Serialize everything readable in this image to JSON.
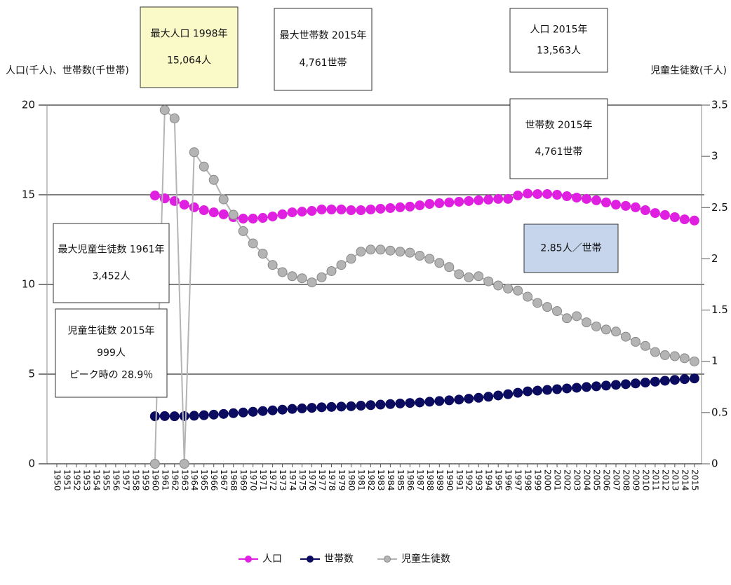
{
  "chart_data": {
    "type": "line",
    "y_label": "人口(千人)、世帯数(千世帯)",
    "y2_label": "児童生徒数(千人)",
    "categories": [
      "1950",
      "1951",
      "1952",
      "1953",
      "1954",
      "1955",
      "1956",
      "1957",
      "1958",
      "1959",
      "1960",
      "1961",
      "1962",
      "1963",
      "1964",
      "1965",
      "1966",
      "1967",
      "1968",
      "1969",
      "1970",
      "1971",
      "1972",
      "1973",
      "1974",
      "1975",
      "1976",
      "1977",
      "1978",
      "1979",
      "1980",
      "1981",
      "1982",
      "1983",
      "1984",
      "1985",
      "1986",
      "1987",
      "1988",
      "1989",
      "1990",
      "1991",
      "1992",
      "1993",
      "1994",
      "1995",
      "1996",
      "1997",
      "1998",
      "1999",
      "2000",
      "2001",
      "2002",
      "2003",
      "2004",
      "2005",
      "2006",
      "2007",
      "2008",
      "2009",
      "2010",
      "2011",
      "2012",
      "2013",
      "2014",
      "2015"
    ],
    "series": [
      {
        "name": "人口",
        "color": "#e020e0",
        "values": [
          null,
          null,
          null,
          null,
          null,
          null,
          null,
          null,
          null,
          null,
          14.96,
          14.8,
          14.65,
          14.45,
          14.3,
          14.14,
          14.02,
          13.91,
          13.75,
          13.67,
          13.67,
          13.71,
          13.79,
          13.91,
          14.02,
          14.06,
          14.1,
          14.18,
          14.18,
          14.18,
          14.14,
          14.14,
          14.18,
          14.22,
          14.26,
          14.3,
          14.34,
          14.41,
          14.49,
          14.53,
          14.57,
          14.61,
          14.65,
          14.69,
          14.73,
          14.77,
          14.77,
          14.96,
          15.064,
          15.04,
          15.04,
          15.0,
          14.92,
          14.84,
          14.77,
          14.69,
          14.57,
          14.45,
          14.38,
          14.3,
          14.14,
          13.98,
          13.87,
          13.75,
          13.63,
          13.563
        ]
      },
      {
        "name": "世帯数",
        "color": "#0b0b60",
        "values": [
          null,
          null,
          null,
          null,
          null,
          null,
          null,
          null,
          null,
          null,
          2.65,
          2.66,
          2.65,
          2.66,
          2.68,
          2.71,
          2.74,
          2.78,
          2.82,
          2.86,
          2.9,
          2.94,
          2.98,
          3.02,
          3.06,
          3.09,
          3.12,
          3.15,
          3.17,
          3.19,
          3.21,
          3.24,
          3.27,
          3.3,
          3.33,
          3.36,
          3.39,
          3.42,
          3.46,
          3.5,
          3.54,
          3.58,
          3.63,
          3.68,
          3.74,
          3.81,
          3.88,
          3.96,
          4.04,
          4.08,
          4.12,
          4.16,
          4.2,
          4.24,
          4.28,
          4.32,
          4.36,
          4.4,
          4.44,
          4.48,
          4.53,
          4.58,
          4.63,
          4.68,
          4.72,
          4.761
        ]
      },
      {
        "name": "児童生徒数",
        "color": "#b4b4b4",
        "axis": "y2",
        "values": [
          null,
          null,
          null,
          null,
          null,
          null,
          null,
          null,
          null,
          null,
          0,
          3.452,
          3.37,
          0,
          3.04,
          2.9,
          2.77,
          2.58,
          2.43,
          2.27,
          2.15,
          2.05,
          1.94,
          1.87,
          1.83,
          1.81,
          1.77,
          1.82,
          1.88,
          1.94,
          2.0,
          2.07,
          2.09,
          2.09,
          2.08,
          2.07,
          2.06,
          2.03,
          2.0,
          1.96,
          1.92,
          1.85,
          1.82,
          1.83,
          1.78,
          1.74,
          1.71,
          1.69,
          1.63,
          1.57,
          1.53,
          1.49,
          1.42,
          1.44,
          1.38,
          1.34,
          1.31,
          1.29,
          1.24,
          1.19,
          1.15,
          1.09,
          1.06,
          1.05,
          1.03,
          0.999
        ]
      }
    ],
    "ylim": [
      0,
      20
    ],
    "yticks": [
      0,
      5,
      10,
      15,
      20
    ],
    "y2lim": [
      0,
      3.5
    ],
    "y2ticks": [
      0,
      0.5,
      1,
      1.5,
      2,
      2.5,
      3,
      3.5
    ],
    "grid": true,
    "legend": "bottom",
    "annotations": [
      {
        "lines": [
          "最大人口 1998年",
          "15,064人"
        ],
        "color": "#fafac8"
      },
      {
        "lines": [
          "最大世帯数 2015年",
          "4,761世帯"
        ],
        "color": "#ffffff"
      },
      {
        "lines": [
          "人口 2015年",
          "13,563人"
        ],
        "color": "#ffffff"
      },
      {
        "lines": [
          "世帯数 2015年",
          "4,761世帯"
        ],
        "color": "#ffffff"
      },
      {
        "lines": [
          "最大児童生徒数 1961年",
          "3,452人"
        ],
        "color": "#ffffff"
      },
      {
        "lines": [
          "児童生徒数 2015年",
          "999人",
          "ピーク時の 28.9％"
        ],
        "color": "#ffffff"
      },
      {
        "lines": [
          "2.85人／世帯"
        ],
        "color": "#c6d5ec"
      }
    ]
  }
}
